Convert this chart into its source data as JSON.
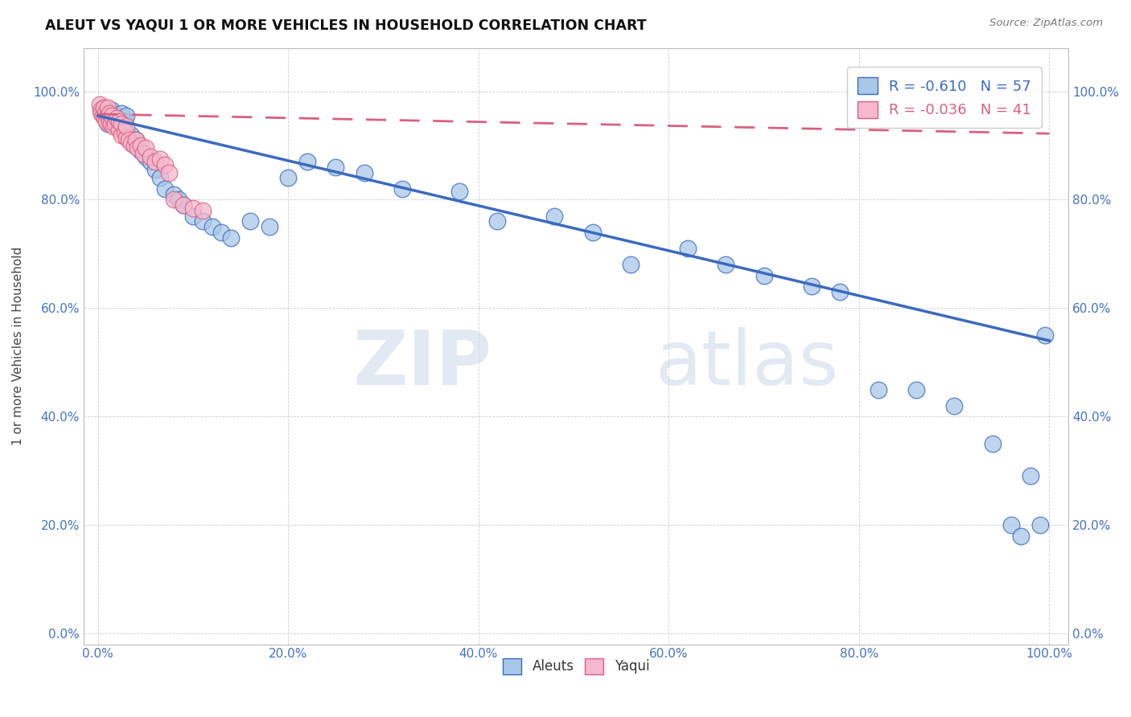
{
  "title": "ALEUT VS YAQUI 1 OR MORE VEHICLES IN HOUSEHOLD CORRELATION CHART",
  "source": "Source: ZipAtlas.com",
  "ylabel_label": "1 or more Vehicles in Household",
  "legend_labels": [
    "Aleuts",
    "Yaqui"
  ],
  "aleut_R": -0.61,
  "aleut_N": 57,
  "yaqui_R": -0.036,
  "yaqui_N": 41,
  "aleut_color": "#a8c8e8",
  "yaqui_color": "#f5b8cc",
  "aleut_line_color": "#3b6abf",
  "yaqui_line_color": "#d96080",
  "watermark_zip": "ZIP",
  "watermark_atlas": "atlas",
  "aleut_x": [
    0.005,
    0.008,
    0.01,
    0.01,
    0.012,
    0.015,
    0.015,
    0.018,
    0.02,
    0.022,
    0.025,
    0.025,
    0.028,
    0.03,
    0.03,
    0.035,
    0.04,
    0.045,
    0.05,
    0.055,
    0.06,
    0.065,
    0.07,
    0.08,
    0.085,
    0.09,
    0.1,
    0.11,
    0.12,
    0.13,
    0.14,
    0.16,
    0.18,
    0.2,
    0.22,
    0.25,
    0.28,
    0.32,
    0.38,
    0.42,
    0.48,
    0.52,
    0.56,
    0.62,
    0.66,
    0.7,
    0.75,
    0.78,
    0.82,
    0.86,
    0.9,
    0.94,
    0.96,
    0.97,
    0.98,
    0.99,
    0.995
  ],
  "aleut_y": [
    0.97,
    0.95,
    0.96,
    0.94,
    0.955,
    0.945,
    0.965,
    0.94,
    0.95,
    0.935,
    0.96,
    0.93,
    0.945,
    0.955,
    0.925,
    0.92,
    0.91,
    0.89,
    0.88,
    0.87,
    0.855,
    0.84,
    0.82,
    0.81,
    0.8,
    0.79,
    0.77,
    0.76,
    0.75,
    0.74,
    0.73,
    0.76,
    0.75,
    0.84,
    0.87,
    0.86,
    0.85,
    0.82,
    0.815,
    0.76,
    0.77,
    0.74,
    0.68,
    0.71,
    0.68,
    0.66,
    0.64,
    0.63,
    0.45,
    0.45,
    0.42,
    0.35,
    0.2,
    0.18,
    0.29,
    0.2,
    0.55
  ],
  "yaqui_x": [
    0.002,
    0.003,
    0.004,
    0.005,
    0.006,
    0.007,
    0.008,
    0.009,
    0.01,
    0.01,
    0.012,
    0.012,
    0.014,
    0.015,
    0.016,
    0.018,
    0.02,
    0.022,
    0.022,
    0.025,
    0.025,
    0.028,
    0.03,
    0.03,
    0.032,
    0.035,
    0.038,
    0.04,
    0.042,
    0.045,
    0.048,
    0.05,
    0.055,
    0.06,
    0.065,
    0.07,
    0.075,
    0.08,
    0.09,
    0.1,
    0.11
  ],
  "yaqui_y": [
    0.975,
    0.965,
    0.96,
    0.955,
    0.97,
    0.95,
    0.96,
    0.945,
    0.97,
    0.955,
    0.945,
    0.96,
    0.94,
    0.955,
    0.935,
    0.94,
    0.95,
    0.93,
    0.945,
    0.92,
    0.94,
    0.925,
    0.915,
    0.935,
    0.91,
    0.905,
    0.9,
    0.91,
    0.895,
    0.9,
    0.885,
    0.895,
    0.88,
    0.87,
    0.875,
    0.865,
    0.85,
    0.8,
    0.79,
    0.785,
    0.78
  ],
  "xticks": [
    0.0,
    0.2,
    0.4,
    0.6,
    0.8,
    1.0
  ],
  "yticks": [
    0.0,
    0.2,
    0.4,
    0.6,
    0.8,
    1.0
  ],
  "xlim": [
    -0.015,
    1.02
  ],
  "ylim": [
    -0.02,
    1.08
  ],
  "aleut_line_x": [
    0.0,
    1.0
  ],
  "aleut_line_y": [
    0.955,
    0.54
  ],
  "yaqui_line_x": [
    0.0,
    1.0
  ],
  "yaqui_line_y": [
    0.958,
    0.922
  ]
}
